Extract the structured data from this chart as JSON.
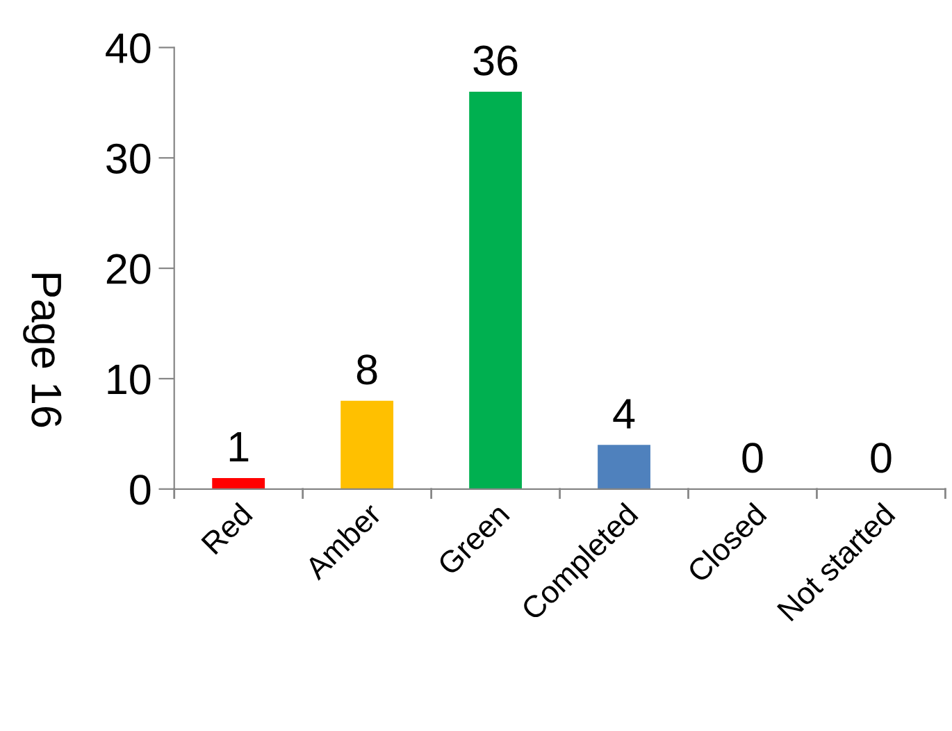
{
  "chart_data": {
    "type": "bar",
    "categories": [
      "Red",
      "Amber",
      "Green",
      "Completed",
      "Closed",
      "Not started"
    ],
    "values": [
      1,
      8,
      36,
      4,
      0,
      0
    ],
    "colors": [
      "#ff0000",
      "#ffc000",
      "#00b050",
      "#4f81bd",
      "#4f81bd",
      "#4f81bd"
    ],
    "ylim": [
      0,
      40
    ],
    "yticks": [
      0,
      10,
      20,
      30,
      40
    ],
    "grid": false,
    "data_labels": true,
    "annotations": [
      "Page 16"
    ]
  }
}
